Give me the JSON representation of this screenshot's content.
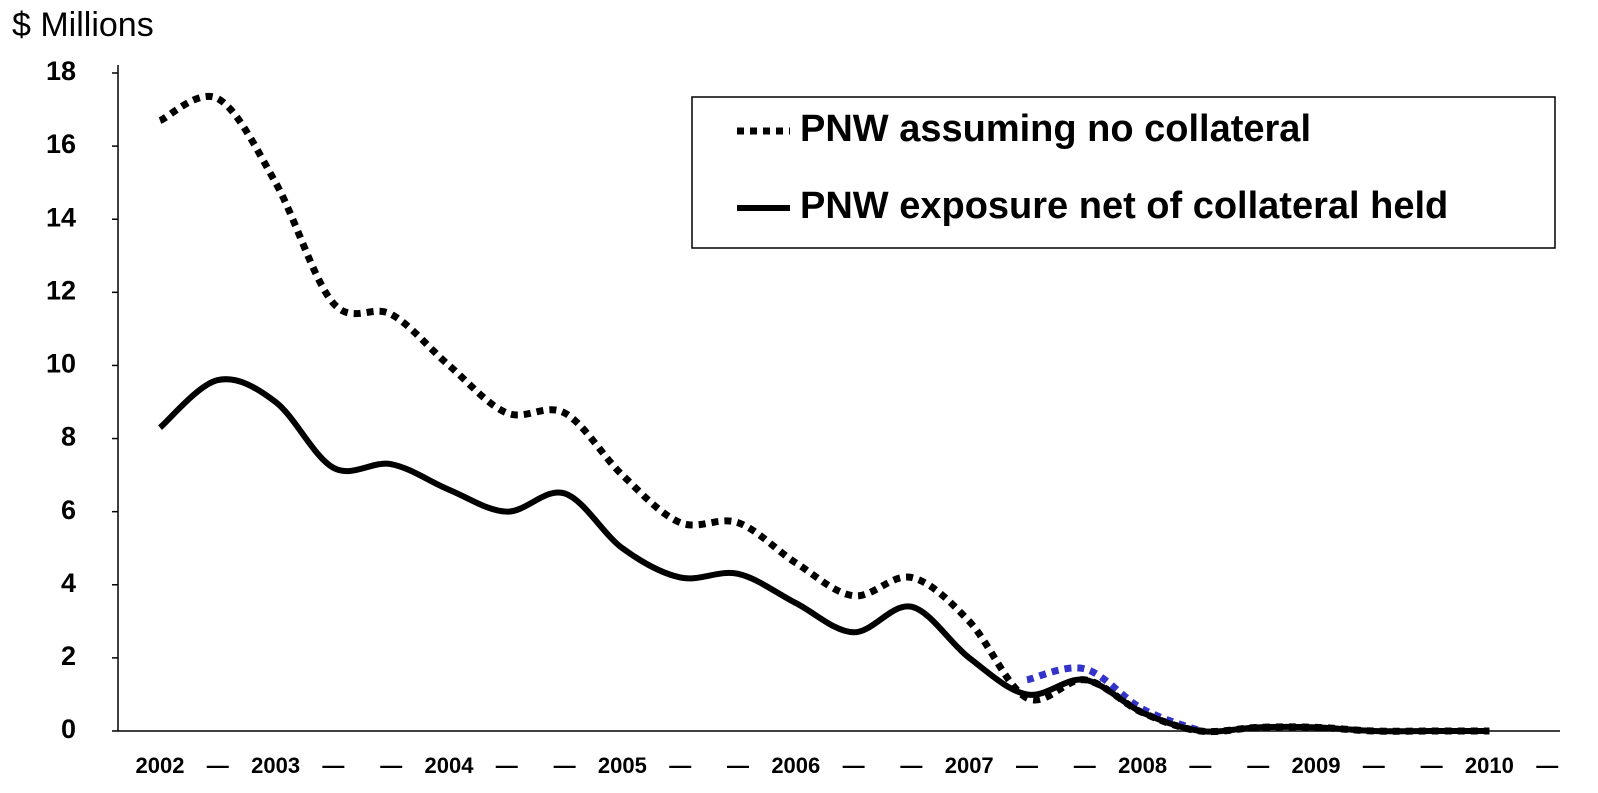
{
  "chart_data": {
    "type": "line",
    "y_label": "$ Millions",
    "categories": [
      "2002",
      "—",
      "2003",
      "—",
      "—",
      "2004",
      "—",
      "—",
      "2005",
      "—",
      "—",
      "2006",
      "—",
      "—",
      "2007",
      "—",
      "—",
      "2008",
      "—",
      "—",
      "2009",
      "—",
      "—",
      "2010",
      "—"
    ],
    "series": [
      {
        "name": "PNW assuming no collateral",
        "color": "#000000",
        "line_style": "dotted",
        "values": [
          16.7,
          17.3,
          15.0,
          11.7,
          11.4,
          10.0,
          8.7,
          8.7,
          7.0,
          5.7,
          5.7,
          4.6,
          3.7,
          4.2,
          3.0,
          0.9,
          1.4,
          0.5,
          0.0,
          0.1,
          0.1,
          0.0,
          0.0,
          0.0,
          null
        ]
      },
      {
        "color": "#3333cc",
        "line_style": "dotted",
        "values": [
          null,
          null,
          null,
          null,
          null,
          null,
          null,
          null,
          null,
          null,
          null,
          null,
          null,
          null,
          null,
          1.4,
          1.7,
          0.6,
          0.0,
          null,
          null,
          null,
          null,
          null,
          null
        ]
      },
      {
        "name": "PNW exposure net of collateral held",
        "color": "#000000",
        "line_style": "solid",
        "values": [
          8.3,
          9.6,
          9.0,
          7.2,
          7.3,
          6.6,
          6.0,
          6.5,
          5.0,
          4.2,
          4.3,
          3.5,
          2.7,
          3.4,
          2.0,
          1.0,
          1.4,
          0.5,
          0.0,
          0.1,
          0.1,
          0.0,
          0.0,
          0.0,
          null
        ]
      }
    ],
    "ylim": [
      0,
      18
    ],
    "yticks": [
      0,
      2,
      4,
      6,
      8,
      10,
      12,
      14,
      16,
      18
    ],
    "legend": "upper right",
    "grid": false
  }
}
